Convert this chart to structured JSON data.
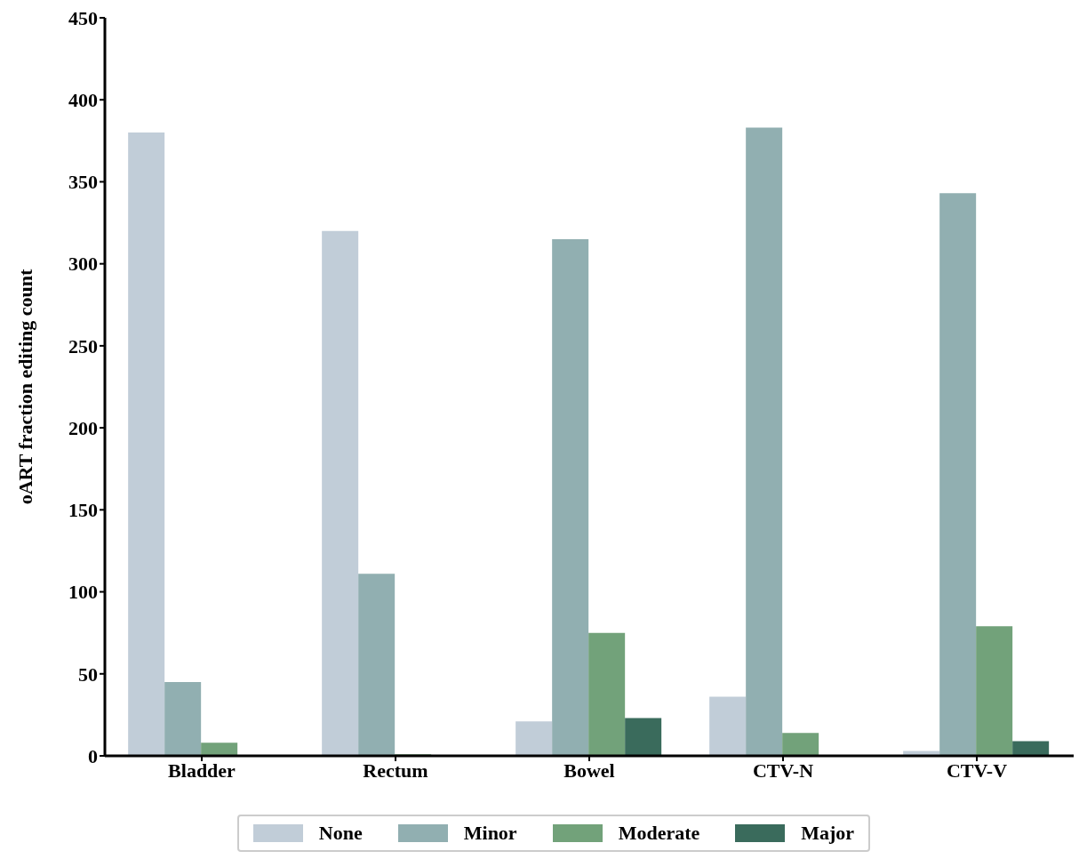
{
  "chart_data": {
    "type": "bar",
    "ylabel": "oART fraction editing  count",
    "categories": [
      "Bladder",
      "Rectum",
      "Bowel",
      "CTV-N",
      "CTV-V"
    ],
    "series": [
      {
        "name": "None",
        "color": "#c1cdd8",
        "values": [
          380,
          320,
          21,
          36,
          3
        ]
      },
      {
        "name": "Minor",
        "color": "#91afb1",
        "values": [
          45,
          111,
          315,
          383,
          343
        ]
      },
      {
        "name": "Moderate",
        "color": "#72a27a",
        "values": [
          8,
          1,
          75,
          14,
          79
        ]
      },
      {
        "name": "Major",
        "color": "#3a6b5c",
        "values": [
          0,
          0,
          23,
          0,
          9
        ]
      }
    ],
    "ylim": [
      0,
      450
    ],
    "yticks": [
      0,
      50,
      100,
      150,
      200,
      250,
      300,
      350,
      400,
      450
    ],
    "grid": false,
    "legend": "bottom"
  }
}
